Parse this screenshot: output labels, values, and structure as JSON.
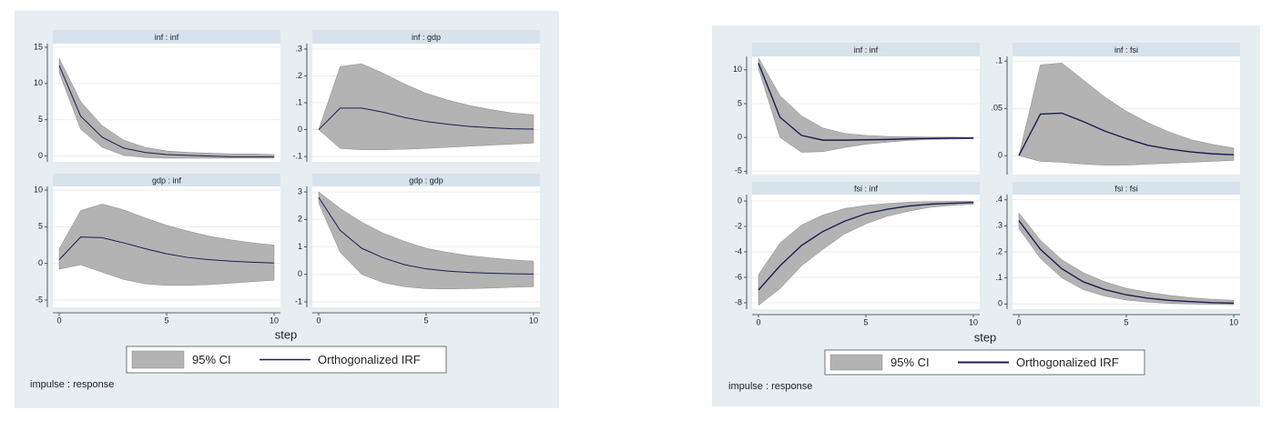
{
  "figures": [
    {
      "legend": [
        {
          "name": "95% CI",
          "color": "#b3b3b3"
        },
        {
          "name": "Orthogonalized IRF",
          "color": "#1c1c50"
        }
      ],
      "xlabel": "step",
      "note": "impulse : response"
    },
    {
      "legend": [
        {
          "name": "95% CI",
          "color": "#b3b3b3"
        },
        {
          "name": "Orthogonalized IRF",
          "color": "#1c1c50"
        }
      ],
      "xlabel": "step",
      "note": "impulse : response"
    }
  ],
  "chart_data": [
    {
      "type": "line",
      "title": "inf : inf",
      "x": [
        0,
        1,
        2,
        3,
        4,
        5,
        6,
        7,
        8,
        9,
        10
      ],
      "xlim": [
        0,
        10
      ],
      "xticks": [
        0,
        5,
        10
      ],
      "ylim": [
        -0.8,
        15.5
      ],
      "yticks": [
        0,
        5,
        10,
        15
      ],
      "grid": true,
      "ci_lower": [
        11.5,
        3.7,
        1.2,
        0.1,
        -0.2,
        -0.3,
        -0.3,
        -0.3,
        -0.3,
        -0.3,
        -0.3
      ],
      "ci_upper": [
        13.5,
        7.5,
        4.2,
        2.2,
        1.2,
        0.7,
        0.5,
        0.4,
        0.3,
        0.3,
        0.2
      ],
      "values": [
        12.5,
        5.5,
        2.6,
        1.1,
        0.5,
        0.2,
        0.1,
        0,
        -0.1,
        -0.1,
        -0.1
      ]
    },
    {
      "type": "line",
      "title": "inf : gdp",
      "x": [
        0,
        1,
        2,
        3,
        4,
        5,
        6,
        7,
        8,
        9,
        10
      ],
      "xlim": [
        0,
        10
      ],
      "xticks": [
        0,
        5,
        10
      ],
      "ylim": [
        -0.12,
        0.32
      ],
      "yticks": [
        {
          "value": -0.1,
          "label": "-.1"
        },
        0,
        {
          "value": 0.1,
          "label": ".1"
        },
        {
          "value": 0.2,
          "label": ".2"
        },
        {
          "value": 0.3,
          "label": ".3"
        }
      ],
      "grid": true,
      "ci_lower": [
        0,
        -0.07,
        -0.075,
        -0.075,
        -0.073,
        -0.07,
        -0.066,
        -0.062,
        -0.058,
        -0.054,
        -0.05
      ],
      "ci_upper": [
        0,
        0.235,
        0.245,
        0.21,
        0.17,
        0.135,
        0.11,
        0.09,
        0.075,
        0.062,
        0.055
      ],
      "values": [
        0,
        0.08,
        0.08,
        0.065,
        0.045,
        0.03,
        0.02,
        0.012,
        0.007,
        0.003,
        0.002
      ]
    },
    {
      "type": "line",
      "title": "gdp : inf",
      "x": [
        0,
        1,
        2,
        3,
        4,
        5,
        6,
        7,
        8,
        9,
        10
      ],
      "xlim": [
        0,
        10
      ],
      "xticks": [
        0,
        5,
        10
      ],
      "ylim": [
        -6,
        10.5
      ],
      "yticks": [
        -5,
        0,
        5,
        10
      ],
      "grid": true,
      "ci_lower": [
        -0.8,
        -0.2,
        -1.2,
        -2.2,
        -2.8,
        -3.0,
        -3.0,
        -2.9,
        -2.7,
        -2.5,
        -2.3
      ],
      "ci_upper": [
        2,
        7.2,
        8.1,
        7.3,
        6.2,
        5.2,
        4.4,
        3.7,
        3.2,
        2.8,
        2.5
      ],
      "values": [
        0.5,
        3.6,
        3.5,
        2.8,
        2.0,
        1.3,
        0.8,
        0.5,
        0.3,
        0.15,
        0.05
      ]
    },
    {
      "type": "line",
      "title": "gdp : gdp",
      "x": [
        0,
        1,
        2,
        3,
        4,
        5,
        6,
        7,
        8,
        9,
        10
      ],
      "xlim": [
        0,
        10
      ],
      "xticks": [
        0,
        5,
        10
      ],
      "ylim": [
        -1.2,
        3.2
      ],
      "yticks": [
        -1,
        0,
        1,
        2,
        3
      ],
      "grid": true,
      "ci_lower": [
        2.6,
        0.8,
        0.0,
        -0.3,
        -0.45,
        -0.52,
        -0.53,
        -0.52,
        -0.5,
        -0.47,
        -0.45
      ],
      "ci_upper": [
        3.0,
        2.4,
        1.9,
        1.5,
        1.2,
        0.95,
        0.8,
        0.68,
        0.6,
        0.53,
        0.48
      ],
      "values": [
        2.8,
        1.6,
        0.95,
        0.6,
        0.35,
        0.2,
        0.12,
        0.07,
        0.04,
        0.02,
        0.01
      ]
    },
    {
      "type": "line",
      "title": "inf : inf",
      "x": [
        0,
        1,
        2,
        3,
        4,
        5,
        6,
        7,
        8,
        9,
        10
      ],
      "xlim": [
        0,
        10
      ],
      "xticks": [
        0,
        5,
        10
      ],
      "ylim": [
        -5.5,
        12
      ],
      "yticks": [
        -5,
        0,
        5,
        10
      ],
      "grid": true,
      "ci_lower": [
        10.2,
        0,
        -2.2,
        -2.1,
        -1.5,
        -1.0,
        -0.7,
        -0.45,
        -0.3,
        -0.25,
        -0.2
      ],
      "ci_upper": [
        11.8,
        6.2,
        3.2,
        1.4,
        0.6,
        0.3,
        0.15,
        0.1,
        0.05,
        0.05,
        0.0
      ],
      "values": [
        11,
        3,
        0.3,
        -0.4,
        -0.4,
        -0.35,
        -0.3,
        -0.2,
        -0.15,
        -0.1,
        -0.1
      ]
    },
    {
      "type": "line",
      "title": "inf : fsi",
      "x": [
        0,
        1,
        2,
        3,
        4,
        5,
        6,
        7,
        8,
        9,
        10
      ],
      "xlim": [
        0,
        10
      ],
      "xticks": [
        0,
        5,
        10
      ],
      "ylim": [
        -0.02,
        0.105
      ],
      "yticks": [
        0,
        {
          "value": 0.05,
          "label": ".05"
        },
        {
          "value": 0.1,
          "label": ".1"
        }
      ],
      "grid": true,
      "ci_lower": [
        0,
        -0.006,
        -0.007,
        -0.009,
        -0.01,
        -0.01,
        -0.009,
        -0.008,
        -0.007,
        -0.006,
        -0.005
      ],
      "ci_upper": [
        0,
        0.096,
        0.098,
        0.08,
        0.062,
        0.047,
        0.035,
        0.025,
        0.017,
        0.012,
        0.008
      ],
      "values": [
        0,
        0.044,
        0.045,
        0.036,
        0.026,
        0.018,
        0.011,
        0.007,
        0.004,
        0.002,
        0.001
      ]
    },
    {
      "type": "line",
      "title": "fsi : inf",
      "x": [
        0,
        1,
        2,
        3,
        4,
        5,
        6,
        7,
        8,
        9,
        10
      ],
      "xlim": [
        0,
        10
      ],
      "xticks": [
        0,
        5,
        10
      ],
      "ylim": [
        -8.5,
        0.5
      ],
      "yticks": [
        -8,
        -6,
        -4,
        -2,
        0
      ],
      "grid": true,
      "ci_lower": [
        -8.2,
        -6.9,
        -5.1,
        -3.8,
        -2.6,
        -1.8,
        -1.2,
        -0.8,
        -0.5,
        -0.35,
        -0.25
      ],
      "ci_upper": [
        -5.8,
        -3.3,
        -1.9,
        -1.1,
        -0.6,
        -0.35,
        -0.2,
        -0.1,
        -0.05,
        -0.03,
        -0.02
      ],
      "values": [
        -7,
        -5.1,
        -3.5,
        -2.4,
        -1.6,
        -1.0,
        -0.65,
        -0.4,
        -0.25,
        -0.18,
        -0.12
      ]
    },
    {
      "type": "line",
      "title": "fsi : fsi",
      "x": [
        0,
        1,
        2,
        3,
        4,
        5,
        6,
        7,
        8,
        9,
        10
      ],
      "xlim": [
        0,
        10
      ],
      "xticks": [
        0,
        5,
        10
      ],
      "ylim": [
        -0.02,
        0.42
      ],
      "yticks": [
        0,
        {
          "value": 0.1,
          "label": ".1"
        },
        {
          "value": 0.2,
          "label": ".2"
        },
        {
          "value": 0.3,
          "label": ".3"
        },
        {
          "value": 0.4,
          "label": ".4"
        }
      ],
      "grid": true,
      "ci_lower": [
        0.29,
        0.175,
        0.1,
        0.055,
        0.03,
        0.015,
        0.007,
        0.002,
        0,
        -0.002,
        -0.003
      ],
      "ci_upper": [
        0.35,
        0.245,
        0.17,
        0.12,
        0.085,
        0.06,
        0.045,
        0.033,
        0.024,
        0.018,
        0.014
      ],
      "values": [
        0.32,
        0.21,
        0.135,
        0.085,
        0.055,
        0.035,
        0.022,
        0.014,
        0.009,
        0.005,
        0.003
      ]
    }
  ]
}
